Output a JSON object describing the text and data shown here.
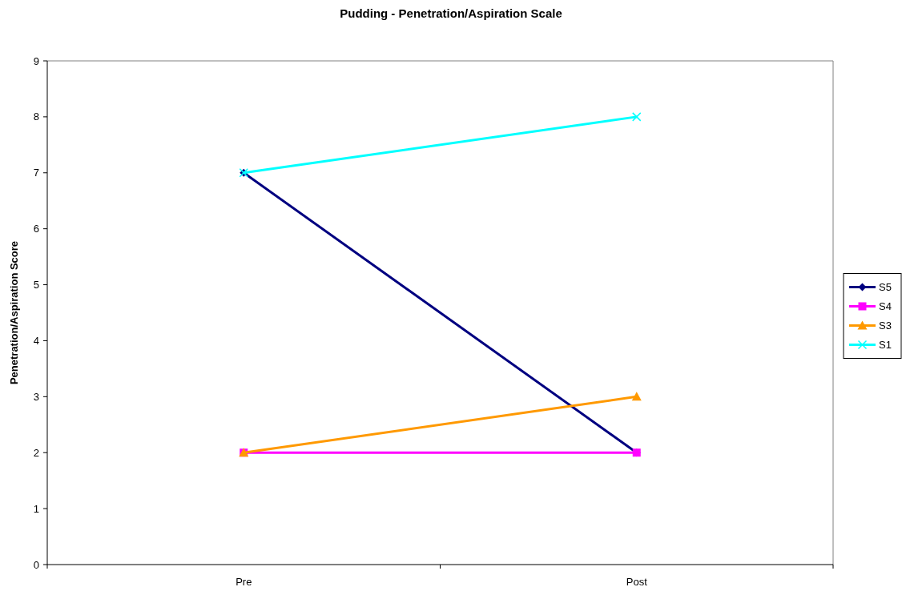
{
  "chart_data": {
    "type": "line",
    "title": "Pudding - Penetration/Aspiration Scale",
    "ylabel": "Penetration/Aspiration Score",
    "categories": [
      "Pre",
      "Post"
    ],
    "series": [
      {
        "name": "S5",
        "color": "#000080",
        "values": [
          7,
          2
        ],
        "marker": "diamond"
      },
      {
        "name": "S4",
        "color": "#ff00ff",
        "values": [
          2,
          2
        ],
        "marker": "square"
      },
      {
        "name": "S3",
        "color": "#ff9900",
        "values": [
          2,
          3
        ],
        "marker": "triangle"
      },
      {
        "name": "S1",
        "color": "#00ffff",
        "values": [
          7,
          8
        ],
        "marker": "cross"
      }
    ],
    "ylim": [
      0,
      9
    ],
    "yticks": [
      0,
      1,
      2,
      3,
      4,
      5,
      6,
      7,
      8,
      9
    ],
    "grid": false,
    "legend": "right",
    "line_style": "solid"
  }
}
